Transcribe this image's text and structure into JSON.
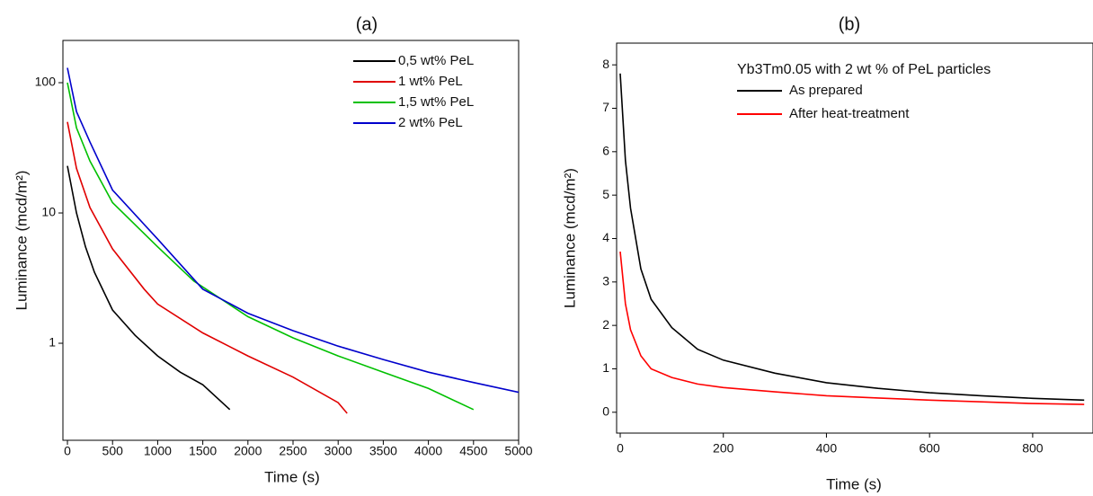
{
  "chart_data": [
    {
      "type": "line",
      "title": "(a)",
      "x_label": "Time (s)",
      "y_label": "Luminance (mcd/m²)",
      "log_y": true,
      "xlim": [
        -50,
        5000
      ],
      "ylim": [
        0.18,
        211
      ],
      "xticks": [
        0,
        500,
        1000,
        1500,
        2000,
        2500,
        3000,
        3500,
        4000,
        4500,
        5000
      ],
      "yticks": [
        1,
        10,
        100
      ],
      "series": [
        {
          "name": "0,5 wt% PeL",
          "color": "#000000",
          "x": [
            0,
            100,
            200,
            300,
            500,
            750,
            1000,
            1250,
            1500,
            1800
          ],
          "values": [
            23,
            10,
            5.5,
            3.5,
            1.8,
            1.15,
            0.8,
            0.6,
            0.48,
            0.31
          ]
        },
        {
          "name": "1  wt% PeL",
          "color": "#e00000",
          "x": [
            0,
            100,
            250,
            500,
            850,
            1000,
            1500,
            2000,
            2500,
            3000,
            3100
          ],
          "values": [
            50,
            22,
            11,
            5.3,
            2.6,
            2.0,
            1.2,
            0.8,
            0.55,
            0.35,
            0.29
          ]
        },
        {
          "name": "1,5 wt% PeL",
          "color": "#00c000",
          "x": [
            0,
            100,
            250,
            500,
            1000,
            1400,
            2000,
            2500,
            3000,
            3500,
            4000,
            4500
          ],
          "values": [
            100,
            45,
            25,
            12,
            5.5,
            3.0,
            1.6,
            1.1,
            0.8,
            0.6,
            0.45,
            0.31
          ]
        },
        {
          "name": "2  wt% PeL",
          "color": "#0000cc",
          "x": [
            0,
            100,
            250,
            500,
            1000,
            1500,
            2000,
            2500,
            3000,
            3500,
            4000,
            4500,
            5000
          ],
          "values": [
            130,
            60,
            35,
            15,
            6.3,
            2.6,
            1.7,
            1.25,
            0.95,
            0.75,
            0.6,
            0.5,
            0.42
          ]
        }
      ]
    },
    {
      "type": "line",
      "title": "(b)",
      "x_label": "Time (s)",
      "y_label": "Luminance (mcd/m²)",
      "legend_title": "Yb3Tm0.05 with 2 wt % of PeL particles",
      "log_y": false,
      "xlim": [
        -7,
        917
      ],
      "ylim": [
        -0.48,
        8.5
      ],
      "xticks": [
        0,
        200,
        400,
        600,
        800
      ],
      "yticks": [
        0,
        1,
        2,
        3,
        4,
        5,
        6,
        7,
        8
      ],
      "series": [
        {
          "name": "As prepared",
          "color": "#000000",
          "x": [
            0,
            10,
            20,
            40,
            60,
            100,
            150,
            200,
            300,
            400,
            500,
            600,
            700,
            800,
            900
          ],
          "values": [
            7.8,
            5.8,
            4.7,
            3.3,
            2.6,
            1.95,
            1.45,
            1.2,
            0.9,
            0.68,
            0.55,
            0.45,
            0.38,
            0.32,
            0.28
          ]
        },
        {
          "name": "After heat-treatment",
          "color": "#ff0000",
          "x": [
            0,
            10,
            20,
            40,
            60,
            100,
            150,
            200,
            300,
            400,
            500,
            600,
            700,
            800,
            900
          ],
          "values": [
            3.7,
            2.5,
            1.9,
            1.3,
            1.0,
            0.8,
            0.65,
            0.57,
            0.47,
            0.38,
            0.33,
            0.28,
            0.24,
            0.2,
            0.18
          ]
        }
      ]
    }
  ]
}
